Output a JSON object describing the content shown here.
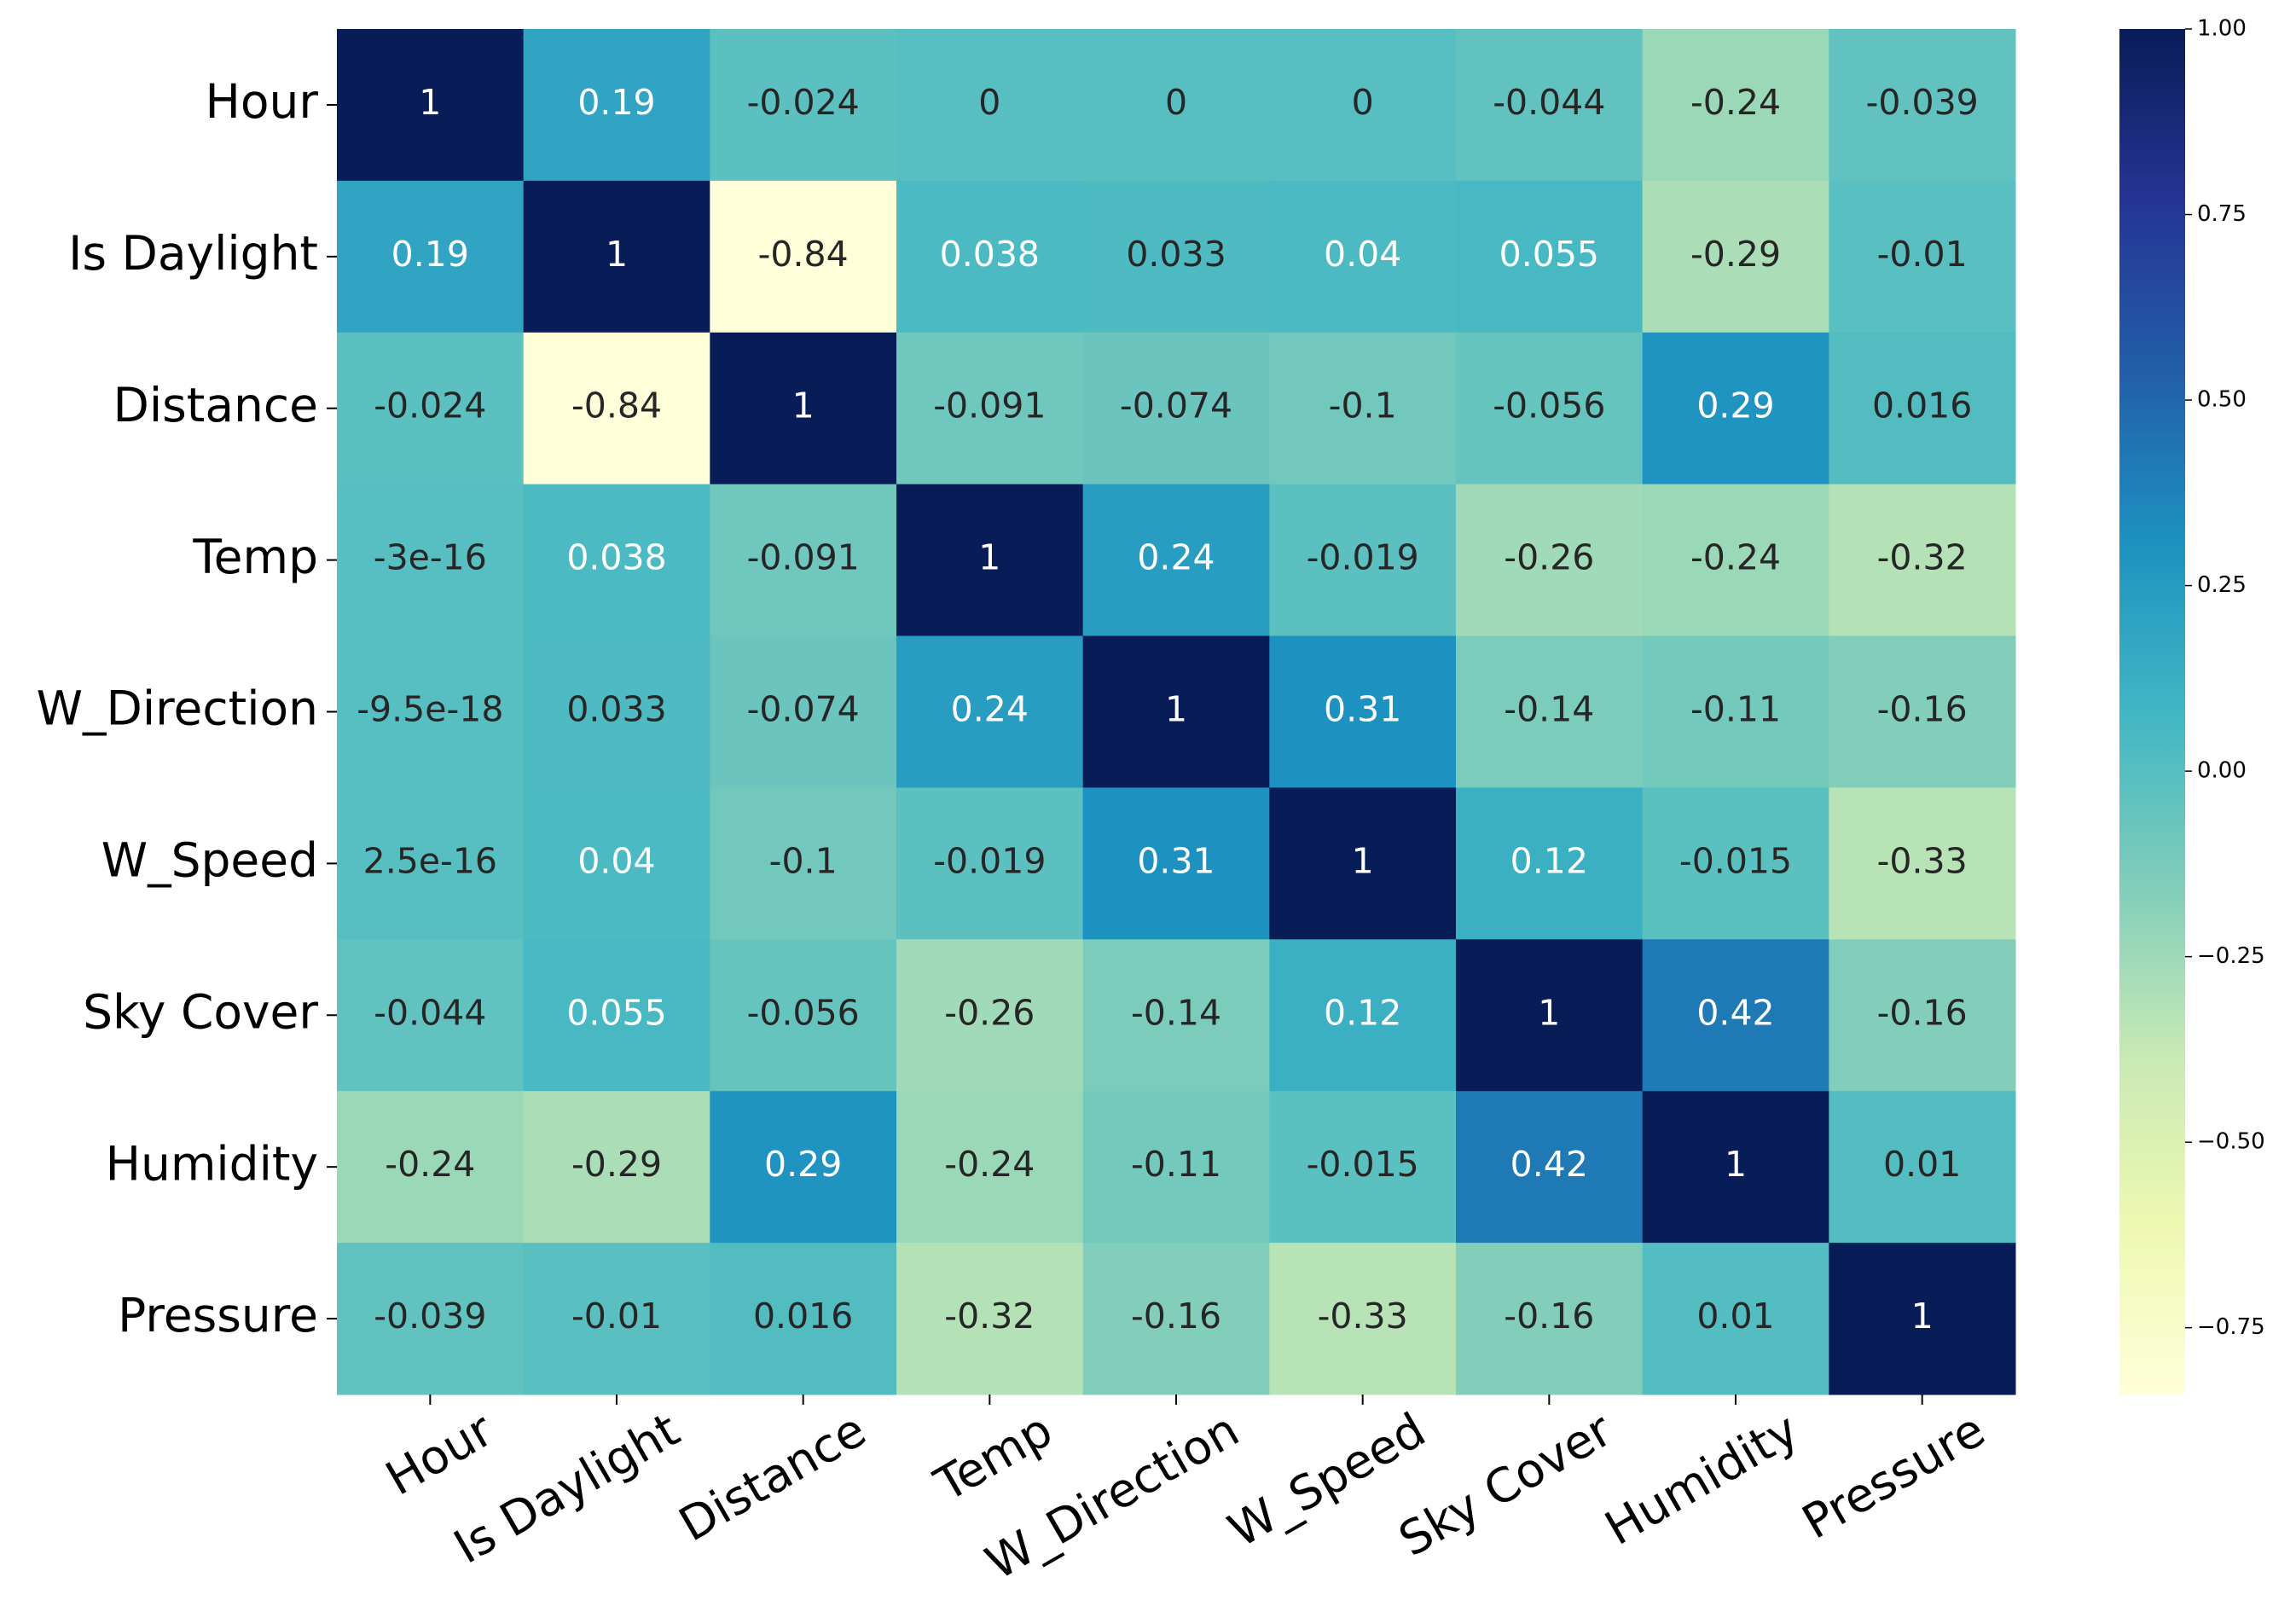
{
  "chart_data": {
    "type": "heatmap",
    "categories": [
      "Hour",
      "Is Daylight",
      "Distance",
      "Temp",
      "W_Direction",
      "W_Speed",
      "Sky Cover",
      "Humidity",
      "Pressure"
    ],
    "values": [
      [
        1,
        0.19,
        -0.024,
        0,
        0,
        0,
        -0.044,
        -0.24,
        -0.039
      ],
      [
        0.19,
        1,
        -0.84,
        0.038,
        0.033,
        0.04,
        0.055,
        -0.29,
        -0.01
      ],
      [
        -0.024,
        -0.84,
        1,
        -0.091,
        -0.074,
        -0.1,
        -0.056,
        0.29,
        0.016
      ],
      [
        -3e-16,
        0.038,
        -0.091,
        1,
        0.24,
        -0.019,
        -0.26,
        -0.24,
        -0.32
      ],
      [
        -9.5e-18,
        0.033,
        -0.074,
        0.24,
        1,
        0.31,
        -0.14,
        -0.11,
        -0.16
      ],
      [
        2.5e-16,
        0.04,
        -0.1,
        -0.019,
        0.31,
        1,
        0.12,
        -0.015,
        -0.33
      ],
      [
        -0.044,
        0.055,
        -0.056,
        -0.26,
        -0.14,
        0.12,
        1,
        0.42,
        -0.16
      ],
      [
        -0.24,
        -0.29,
        0.29,
        -0.24,
        -0.11,
        -0.015,
        0.42,
        1,
        0.01
      ],
      [
        -0.039,
        -0.01,
        0.016,
        -0.32,
        -0.16,
        -0.33,
        -0.16,
        0.01,
        1
      ]
    ],
    "colormap": [
      "#ffffd9",
      "#edf8b1",
      "#c7e9b4",
      "#7fcdbb",
      "#41b6c4",
      "#1d91c0",
      "#225ea8",
      "#253494",
      "#081d58"
    ],
    "clim": [
      -0.84,
      1
    ],
    "cticks": [
      {
        "value": 1,
        "label": "1.00"
      },
      {
        "value": 0.75,
        "label": "0.75"
      },
      {
        "value": 0.5,
        "label": "0.50"
      },
      {
        "value": 0.25,
        "label": "0.25"
      },
      {
        "value": 0,
        "label": "0.00"
      },
      {
        "value": -0.25,
        "label": "−0.25"
      },
      {
        "value": -0.5,
        "label": "−0.50"
      },
      {
        "value": -0.75,
        "label": "−0.75"
      }
    ]
  }
}
